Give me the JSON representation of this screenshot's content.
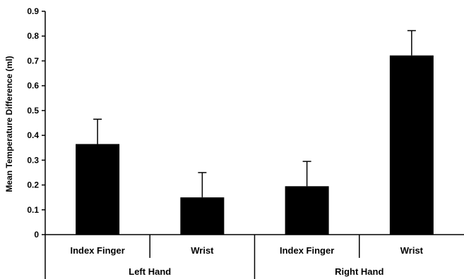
{
  "chart_data": {
    "type": "bar",
    "title": "",
    "xlabel": "",
    "ylabel": "Mean Temperature Difference (ml)",
    "ylim": [
      0,
      0.9
    ],
    "yticks": [
      0,
      0.1,
      0.2,
      0.3,
      0.4,
      0.5,
      0.6,
      0.7,
      0.8,
      0.9
    ],
    "ytick_labels": [
      "0",
      "0.1",
      "0.2",
      "0.3",
      "0.4",
      "0.5",
      "0.6",
      "0.7",
      "0.8",
      "0.9"
    ],
    "grid": false,
    "legend": "none",
    "bar_color": "#000000",
    "categories": [
      "Index Finger",
      "Wrist",
      "Index Finger",
      "Wrist"
    ],
    "groups": [
      {
        "label": "Left Hand",
        "categories": [
          "Index Finger",
          "Wrist"
        ]
      },
      {
        "label": "Right Hand",
        "categories": [
          "Index Finger",
          "Wrist"
        ]
      }
    ],
    "values": [
      0.365,
      0.15,
      0.195,
      0.722
    ],
    "error_upper": [
      0.1,
      0.1,
      0.1,
      0.1
    ]
  }
}
